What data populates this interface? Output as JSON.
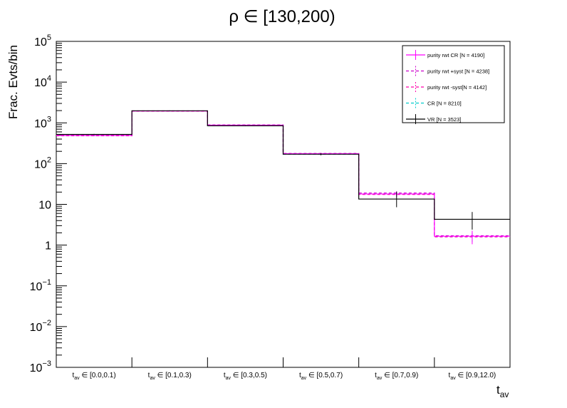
{
  "chart_data": {
    "type": "step-histogram",
    "title": "ρ ∈ [130,200)",
    "xlabel": "t",
    "xlabel_sub": "av",
    "ylabel": "Frac. Evts/bin",
    "yscale": "log",
    "ylim": [
      0.001,
      100000
    ],
    "y_ticks": [
      {
        "base": "10",
        "exp": "5"
      },
      {
        "base": "10",
        "exp": "4"
      },
      {
        "base": "10",
        "exp": "3"
      },
      {
        "base": "10",
        "exp": "2"
      },
      {
        "base": "10",
        "exp": ""
      },
      {
        "base": "1",
        "exp": ""
      },
      {
        "base": "10",
        "exp": "−1"
      },
      {
        "base": "10",
        "exp": "−2"
      },
      {
        "base": "10",
        "exp": "−3"
      }
    ],
    "categories": [
      {
        "t": "t",
        "sub": "av",
        "rest": " ∈ [0.0,0.1)"
      },
      {
        "t": "t",
        "sub": "av",
        "rest": " ∈ [0.1,0.3)"
      },
      {
        "t": "t",
        "sub": "av",
        "rest": " ∈ [0.3,0.5)"
      },
      {
        "t": "t",
        "sub": "av",
        "rest": " ∈ [0.5,0.7)"
      },
      {
        "t": "t",
        "sub": "av",
        "rest": " ∈ [0.7,0.9)"
      },
      {
        "t": "t",
        "sub": "av",
        "rest": " ∈ [0.9,12.0)"
      }
    ],
    "series": [
      {
        "name": "purity rwt CR [N = 4190]",
        "color": "#ff00ff",
        "style": "solid",
        "values": [
          490,
          1950,
          880,
          175,
          18,
          1.65
        ],
        "errors_up": [
          12,
          30,
          20,
          9,
          3,
          0.6
        ],
        "errors_down": [
          12,
          30,
          20,
          9,
          3,
          0.6
        ]
      },
      {
        "name": "purity rwt +syst [N = 4238]",
        "color": "#cc00cc",
        "style": "dashed",
        "values": [
          500,
          1970,
          890,
          178,
          19,
          1.7
        ]
      },
      {
        "name": "purity rwt -syst[N = 4142]",
        "color": "#ff00aa",
        "style": "dashed",
        "values": [
          480,
          1930,
          870,
          172,
          17.5,
          1.6
        ]
      },
      {
        "name": "CR [N = 8210]",
        "color": "#00cccc",
        "style": "dashed",
        "values": [
          480,
          1930,
          860,
          170,
          18,
          1.6
        ],
        "errors_up": [
          10,
          20,
          15,
          6,
          2,
          0.4
        ],
        "errors_down": [
          10,
          20,
          15,
          6,
          2,
          0.4
        ]
      },
      {
        "name": "VR [N = 3523]",
        "color": "#000000",
        "style": "solid",
        "values": [
          520,
          1980,
          850,
          170,
          13.5,
          4.3
        ],
        "errors_up": [
          15,
          35,
          20,
          10,
          7,
          2.2
        ],
        "errors_down": [
          15,
          35,
          20,
          10,
          5,
          1.9
        ]
      }
    ],
    "legend_position": "top-right",
    "grid": false
  }
}
